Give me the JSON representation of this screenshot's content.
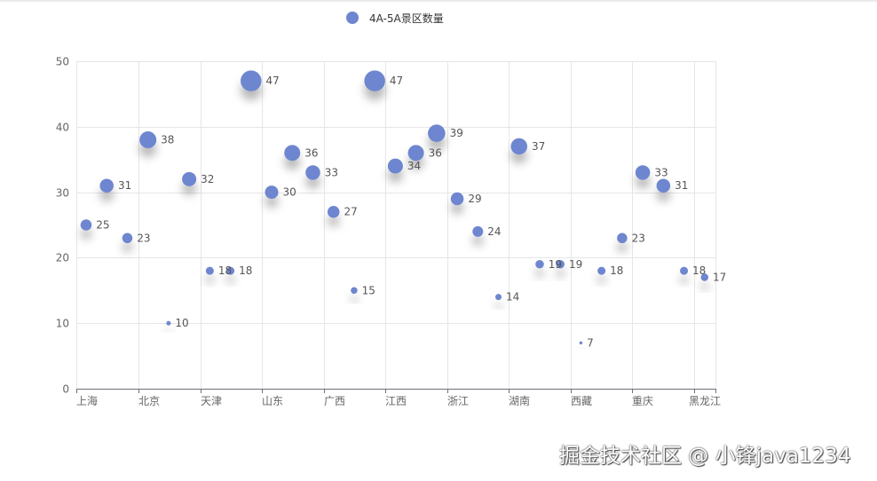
{
  "legend": {
    "label": "4A-5A景区数量",
    "color": "#6e86cf"
  },
  "watermark": "掘金技术社区 @ 小锋java1234",
  "chart_data": {
    "type": "scatter",
    "series": [
      {
        "name": "4A-5A景区数量",
        "points": [
          {
            "x": 0,
            "y": 25
          },
          {
            "x": 1,
            "y": 31
          },
          {
            "x": 2,
            "y": 23
          },
          {
            "x": 3,
            "y": 38
          },
          {
            "x": 4,
            "y": 10
          },
          {
            "x": 5,
            "y": 32
          },
          {
            "x": 6,
            "y": 18
          },
          {
            "x": 7,
            "y": 18
          },
          {
            "x": 8,
            "y": 47
          },
          {
            "x": 9,
            "y": 30
          },
          {
            "x": 10,
            "y": 36
          },
          {
            "x": 11,
            "y": 33
          },
          {
            "x": 12,
            "y": 27
          },
          {
            "x": 13,
            "y": 15
          },
          {
            "x": 14,
            "y": 47
          },
          {
            "x": 15,
            "y": 34
          },
          {
            "x": 16,
            "y": 36
          },
          {
            "x": 17,
            "y": 39
          },
          {
            "x": 18,
            "y": 29
          },
          {
            "x": 19,
            "y": 24
          },
          {
            "x": 20,
            "y": 14
          },
          {
            "x": 21,
            "y": 37
          },
          {
            "x": 22,
            "y": 19
          },
          {
            "x": 23,
            "y": 19
          },
          {
            "x": 24,
            "y": 7
          },
          {
            "x": 25,
            "y": 18
          },
          {
            "x": 26,
            "y": 23
          },
          {
            "x": 27,
            "y": 33
          },
          {
            "x": 28,
            "y": 31
          },
          {
            "x": 29,
            "y": 18
          },
          {
            "x": 30,
            "y": 17
          }
        ]
      }
    ],
    "x_tick_labels": [
      {
        "x": 0,
        "label": "上海"
      },
      {
        "x": 3,
        "label": "北京"
      },
      {
        "x": 6,
        "label": "天津"
      },
      {
        "x": 9,
        "label": "山东"
      },
      {
        "x": 12,
        "label": "广西"
      },
      {
        "x": 15,
        "label": "江西"
      },
      {
        "x": 18,
        "label": "浙江"
      },
      {
        "x": 21,
        "label": "湖南"
      },
      {
        "x": 24,
        "label": "西藏"
      },
      {
        "x": 27,
        "label": "重庆"
      },
      {
        "x": 30,
        "label": "黑龙江"
      }
    ],
    "xlim": [
      0,
      31
    ],
    "ylim": [
      0,
      50
    ],
    "y_ticks": [
      0,
      10,
      20,
      30,
      40,
      50
    ],
    "symbol_size_encodes": "y",
    "data_labels": "right",
    "grid": true,
    "legend_position": "top-center",
    "point_color": "#6e86cf"
  }
}
